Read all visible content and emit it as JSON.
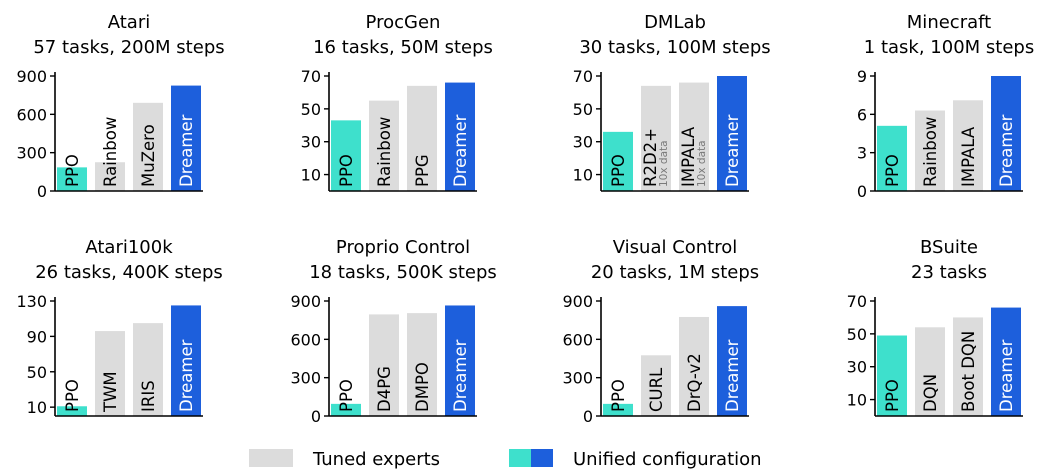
{
  "colors": {
    "expert": "#dcdcdc",
    "ppo": "#3ee0cc",
    "dreamer": "#1d5fdc",
    "axis": "#000000",
    "label_dark": "#000000",
    "label_light": "#ffffff"
  },
  "legend": {
    "expert_label": "Tuned experts",
    "unified_label": "Unified configuration"
  },
  "chart_data": [
    {
      "type": "bar",
      "title": "Atari",
      "subtitle": "57 tasks, 200M steps",
      "ylim": [
        0,
        900
      ],
      "yticks": [
        0,
        300,
        600,
        900
      ],
      "bars": [
        {
          "label": "PPO",
          "value": 185,
          "group": "ppo"
        },
        {
          "label": "Rainbow",
          "value": 225,
          "group": "expert"
        },
        {
          "label": "MuZero",
          "value": 690,
          "group": "expert"
        },
        {
          "label": "Dreamer",
          "value": 825,
          "group": "dreamer"
        }
      ]
    },
    {
      "type": "bar",
      "title": "ProcGen",
      "subtitle": "16 tasks, 50M steps",
      "ylim": [
        0,
        70
      ],
      "yticks": [
        10,
        30,
        50,
        70
      ],
      "bars": [
        {
          "label": "PPO",
          "value": 43,
          "group": "ppo"
        },
        {
          "label": "Rainbow",
          "value": 55,
          "group": "expert"
        },
        {
          "label": "PPG",
          "value": 64,
          "group": "expert"
        },
        {
          "label": "Dreamer",
          "value": 66,
          "group": "dreamer"
        }
      ]
    },
    {
      "type": "bar",
      "title": "DMLab",
      "subtitle": "30 tasks, 100M steps",
      "ylim": [
        0,
        70
      ],
      "yticks": [
        10,
        30,
        50,
        70
      ],
      "bars": [
        {
          "label": "PPO",
          "value": 36,
          "group": "ppo"
        },
        {
          "label": "R2D2+",
          "note": "10x data",
          "value": 64,
          "group": "expert"
        },
        {
          "label": "IMPALA",
          "note": "10x data",
          "value": 66,
          "group": "expert"
        },
        {
          "label": "Dreamer",
          "value": 70,
          "group": "dreamer"
        }
      ]
    },
    {
      "type": "bar",
      "title": "Minecraft",
      "subtitle": "1 task, 100M steps",
      "ylim": [
        0,
        9
      ],
      "yticks": [
        0,
        3,
        6,
        9
      ],
      "bars": [
        {
          "label": "PPO",
          "value": 5.1,
          "group": "ppo"
        },
        {
          "label": "Rainbow",
          "value": 6.3,
          "group": "expert"
        },
        {
          "label": "IMPALA",
          "value": 7.1,
          "group": "expert"
        },
        {
          "label": "Dreamer",
          "value": 9.0,
          "group": "dreamer"
        }
      ]
    },
    {
      "type": "bar",
      "title": "Atari100k",
      "subtitle": "26 tasks, 400K steps",
      "ylim": [
        0,
        130
      ],
      "yticks": [
        10,
        50,
        90,
        130
      ],
      "bars": [
        {
          "label": "PPO",
          "value": 11,
          "group": "ppo"
        },
        {
          "label": "TWM",
          "value": 96,
          "group": "expert"
        },
        {
          "label": "IRIS",
          "value": 105,
          "group": "expert"
        },
        {
          "label": "Dreamer",
          "value": 125,
          "group": "dreamer"
        }
      ]
    },
    {
      "type": "bar",
      "title": "Proprio Control",
      "subtitle": "18 tasks, 500K steps",
      "ylim": [
        0,
        900
      ],
      "yticks": [
        0,
        300,
        600,
        900
      ],
      "bars": [
        {
          "label": "PPO",
          "value": 95,
          "group": "ppo"
        },
        {
          "label": "D4PG",
          "value": 795,
          "group": "expert"
        },
        {
          "label": "DMPO",
          "value": 805,
          "group": "expert"
        },
        {
          "label": "Dreamer",
          "value": 865,
          "group": "dreamer"
        }
      ]
    },
    {
      "type": "bar",
      "title": "Visual Control",
      "subtitle": "20 tasks, 1M steps",
      "ylim": [
        0,
        900
      ],
      "yticks": [
        0,
        300,
        600,
        900
      ],
      "bars": [
        {
          "label": "PPO",
          "value": 95,
          "group": "ppo"
        },
        {
          "label": "CURL",
          "value": 475,
          "group": "expert"
        },
        {
          "label": "DrQ-v2",
          "value": 775,
          "group": "expert"
        },
        {
          "label": "Dreamer",
          "value": 860,
          "group": "dreamer"
        }
      ]
    },
    {
      "type": "bar",
      "title": "BSuite",
      "subtitle": "23 tasks",
      "ylim": [
        0,
        70
      ],
      "yticks": [
        10,
        30,
        50,
        70
      ],
      "bars": [
        {
          "label": "PPO",
          "value": 49,
          "group": "ppo"
        },
        {
          "label": "DQN",
          "value": 54,
          "group": "expert"
        },
        {
          "label": "Boot DQN",
          "value": 60,
          "group": "expert"
        },
        {
          "label": "Dreamer",
          "value": 66,
          "group": "dreamer"
        }
      ]
    }
  ]
}
